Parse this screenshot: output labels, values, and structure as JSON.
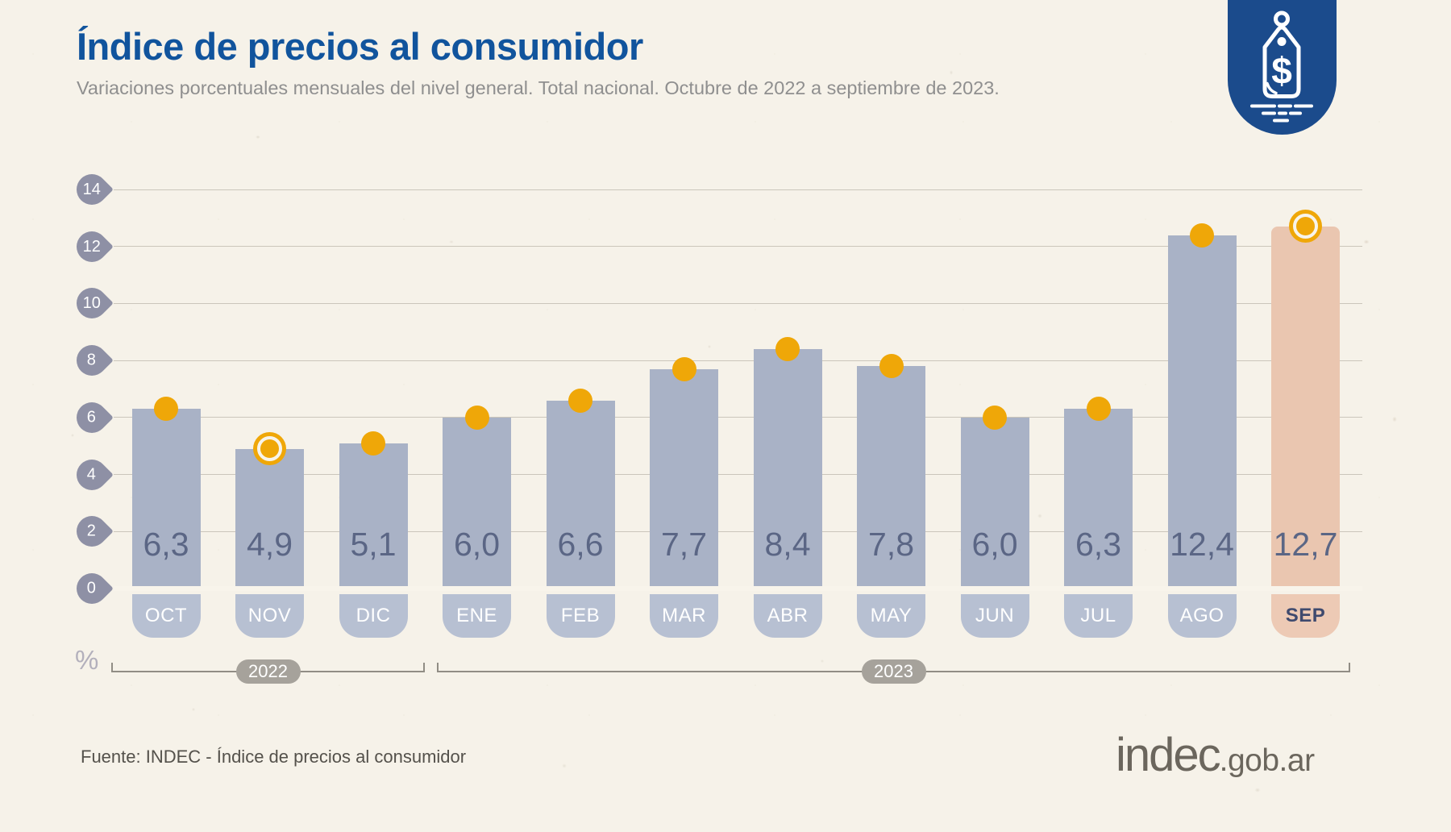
{
  "header": {
    "title": "Índice de precios al consumidor",
    "subtitle": "Variaciones porcentuales mensuales del nivel general. Total nacional. Octubre de 2022 a septiembre de 2023.",
    "badge_icon": "price-tag-icon"
  },
  "chart_data": {
    "type": "bar",
    "title": "Índice de precios al consumidor",
    "subtitle": "Variaciones porcentuales mensuales del nivel general. Total nacional. Octubre de 2022 a septiembre de 2023.",
    "unit_label": "%",
    "categories": [
      "OCT",
      "NOV",
      "DIC",
      "ENE",
      "FEB",
      "MAR",
      "ABR",
      "MAY",
      "JUN",
      "JUL",
      "AGO",
      "SEP"
    ],
    "values": [
      6.3,
      4.9,
      5.1,
      6.0,
      6.6,
      7.7,
      8.4,
      7.8,
      6.0,
      6.3,
      12.4,
      12.7
    ],
    "value_labels": [
      "6,3",
      "4,9",
      "5,1",
      "6,0",
      "6,6",
      "7,7",
      "8,4",
      "7,8",
      "6,0",
      "6,3",
      "12,4",
      "12,7"
    ],
    "y_ticks": [
      0,
      2,
      4,
      6,
      8,
      10,
      12,
      14
    ],
    "ylim": [
      0,
      14
    ],
    "grid": true,
    "legend": false,
    "highlight_category": "SEP",
    "ringed_categories": [
      "NOV",
      "SEP"
    ],
    "year_groups": [
      {
        "label": "2022",
        "first": "OCT",
        "last": "DIC"
      },
      {
        "label": "2023",
        "first": "ENE",
        "last": "SEP"
      }
    ],
    "colors": {
      "bar": "#a9b2c6",
      "bar_highlight": "#eac6b0",
      "month_chip": "#b7c0d2",
      "month_chip_highlight": "#edcab5",
      "value_text": "#5b6685",
      "month_text": "#ffffff",
      "month_text_highlight": "#3f4a6e",
      "dot": "#efa708",
      "ring": "#f8f4ea",
      "tick_chip": "#8e90a5",
      "gridline": "#cbc6bb",
      "year_pill": "#a6a29b",
      "title_blue": "#11549d",
      "badge_blue": "#1b4b8c"
    }
  },
  "footer": {
    "source": "Fuente: INDEC - Índice de precios al consumidor",
    "logo_main": "indec",
    "logo_suffix": ".gob.ar"
  }
}
